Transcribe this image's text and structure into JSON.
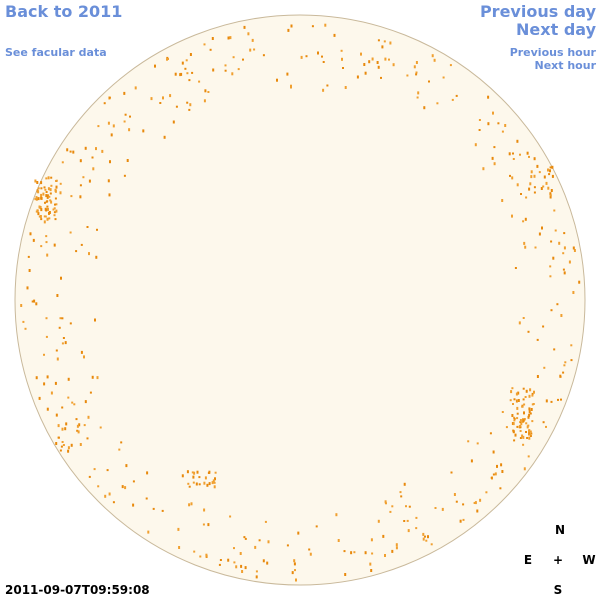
{
  "links": {
    "back_year": "Back to 2011",
    "previous_day": "Previous day",
    "next_day": "Next day",
    "facular_data": "See facular data",
    "previous_hour": "Previous hour",
    "next_hour": "Next hour"
  },
  "timestamp": "2011-09-07T09:59:08",
  "compass": {
    "north": "N",
    "east": "E",
    "center": "+",
    "west": "W",
    "south": "S"
  }
}
